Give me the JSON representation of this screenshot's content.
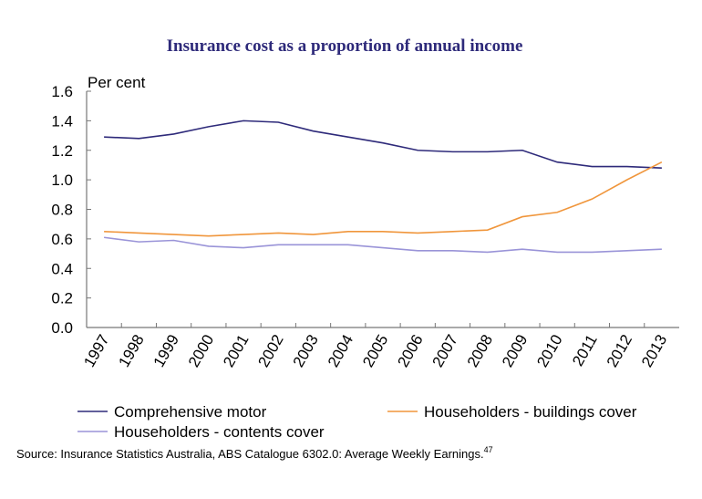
{
  "chart_data": {
    "type": "line",
    "title": "Insurance cost as a proportion of annual income",
    "ylabel": "Per cent",
    "xlabel": "",
    "ylim": [
      0,
      1.6
    ],
    "yticks": [
      "0.0",
      "0.2",
      "0.4",
      "0.6",
      "0.8",
      "1.0",
      "1.2",
      "1.4",
      "1.6"
    ],
    "categories": [
      "1997",
      "1998",
      "1999",
      "2000",
      "2001",
      "2002",
      "2003",
      "2004",
      "2005",
      "2006",
      "2007",
      "2008",
      "2009",
      "2010",
      "2011",
      "2012",
      "2013"
    ],
    "series": [
      {
        "name": "Comprehensive motor",
        "color": "#2e2a7a",
        "values": [
          1.29,
          1.28,
          1.31,
          1.36,
          1.4,
          1.39,
          1.33,
          1.29,
          1.25,
          1.2,
          1.19,
          1.19,
          1.2,
          1.12,
          1.09,
          1.09,
          1.08
        ]
      },
      {
        "name": "Householders - buildings cover",
        "color": "#f0963c",
        "values": [
          0.65,
          0.64,
          0.63,
          0.62,
          0.63,
          0.64,
          0.63,
          0.65,
          0.65,
          0.64,
          0.65,
          0.66,
          0.75,
          0.78,
          0.87,
          1.0,
          1.12
        ]
      },
      {
        "name": "Householders - contents cover",
        "color": "#9a94d8",
        "values": [
          0.61,
          0.58,
          0.59,
          0.55,
          0.54,
          0.56,
          0.56,
          0.56,
          0.54,
          0.52,
          0.52,
          0.51,
          0.53,
          0.51,
          0.51,
          0.52,
          0.53
        ]
      }
    ],
    "legend": "bottom",
    "grid": false,
    "source": "Source: Insurance Statistics Australia, ABS Catalogue 6302.0: Average Weekly Earnings.",
    "footnote": "47"
  }
}
